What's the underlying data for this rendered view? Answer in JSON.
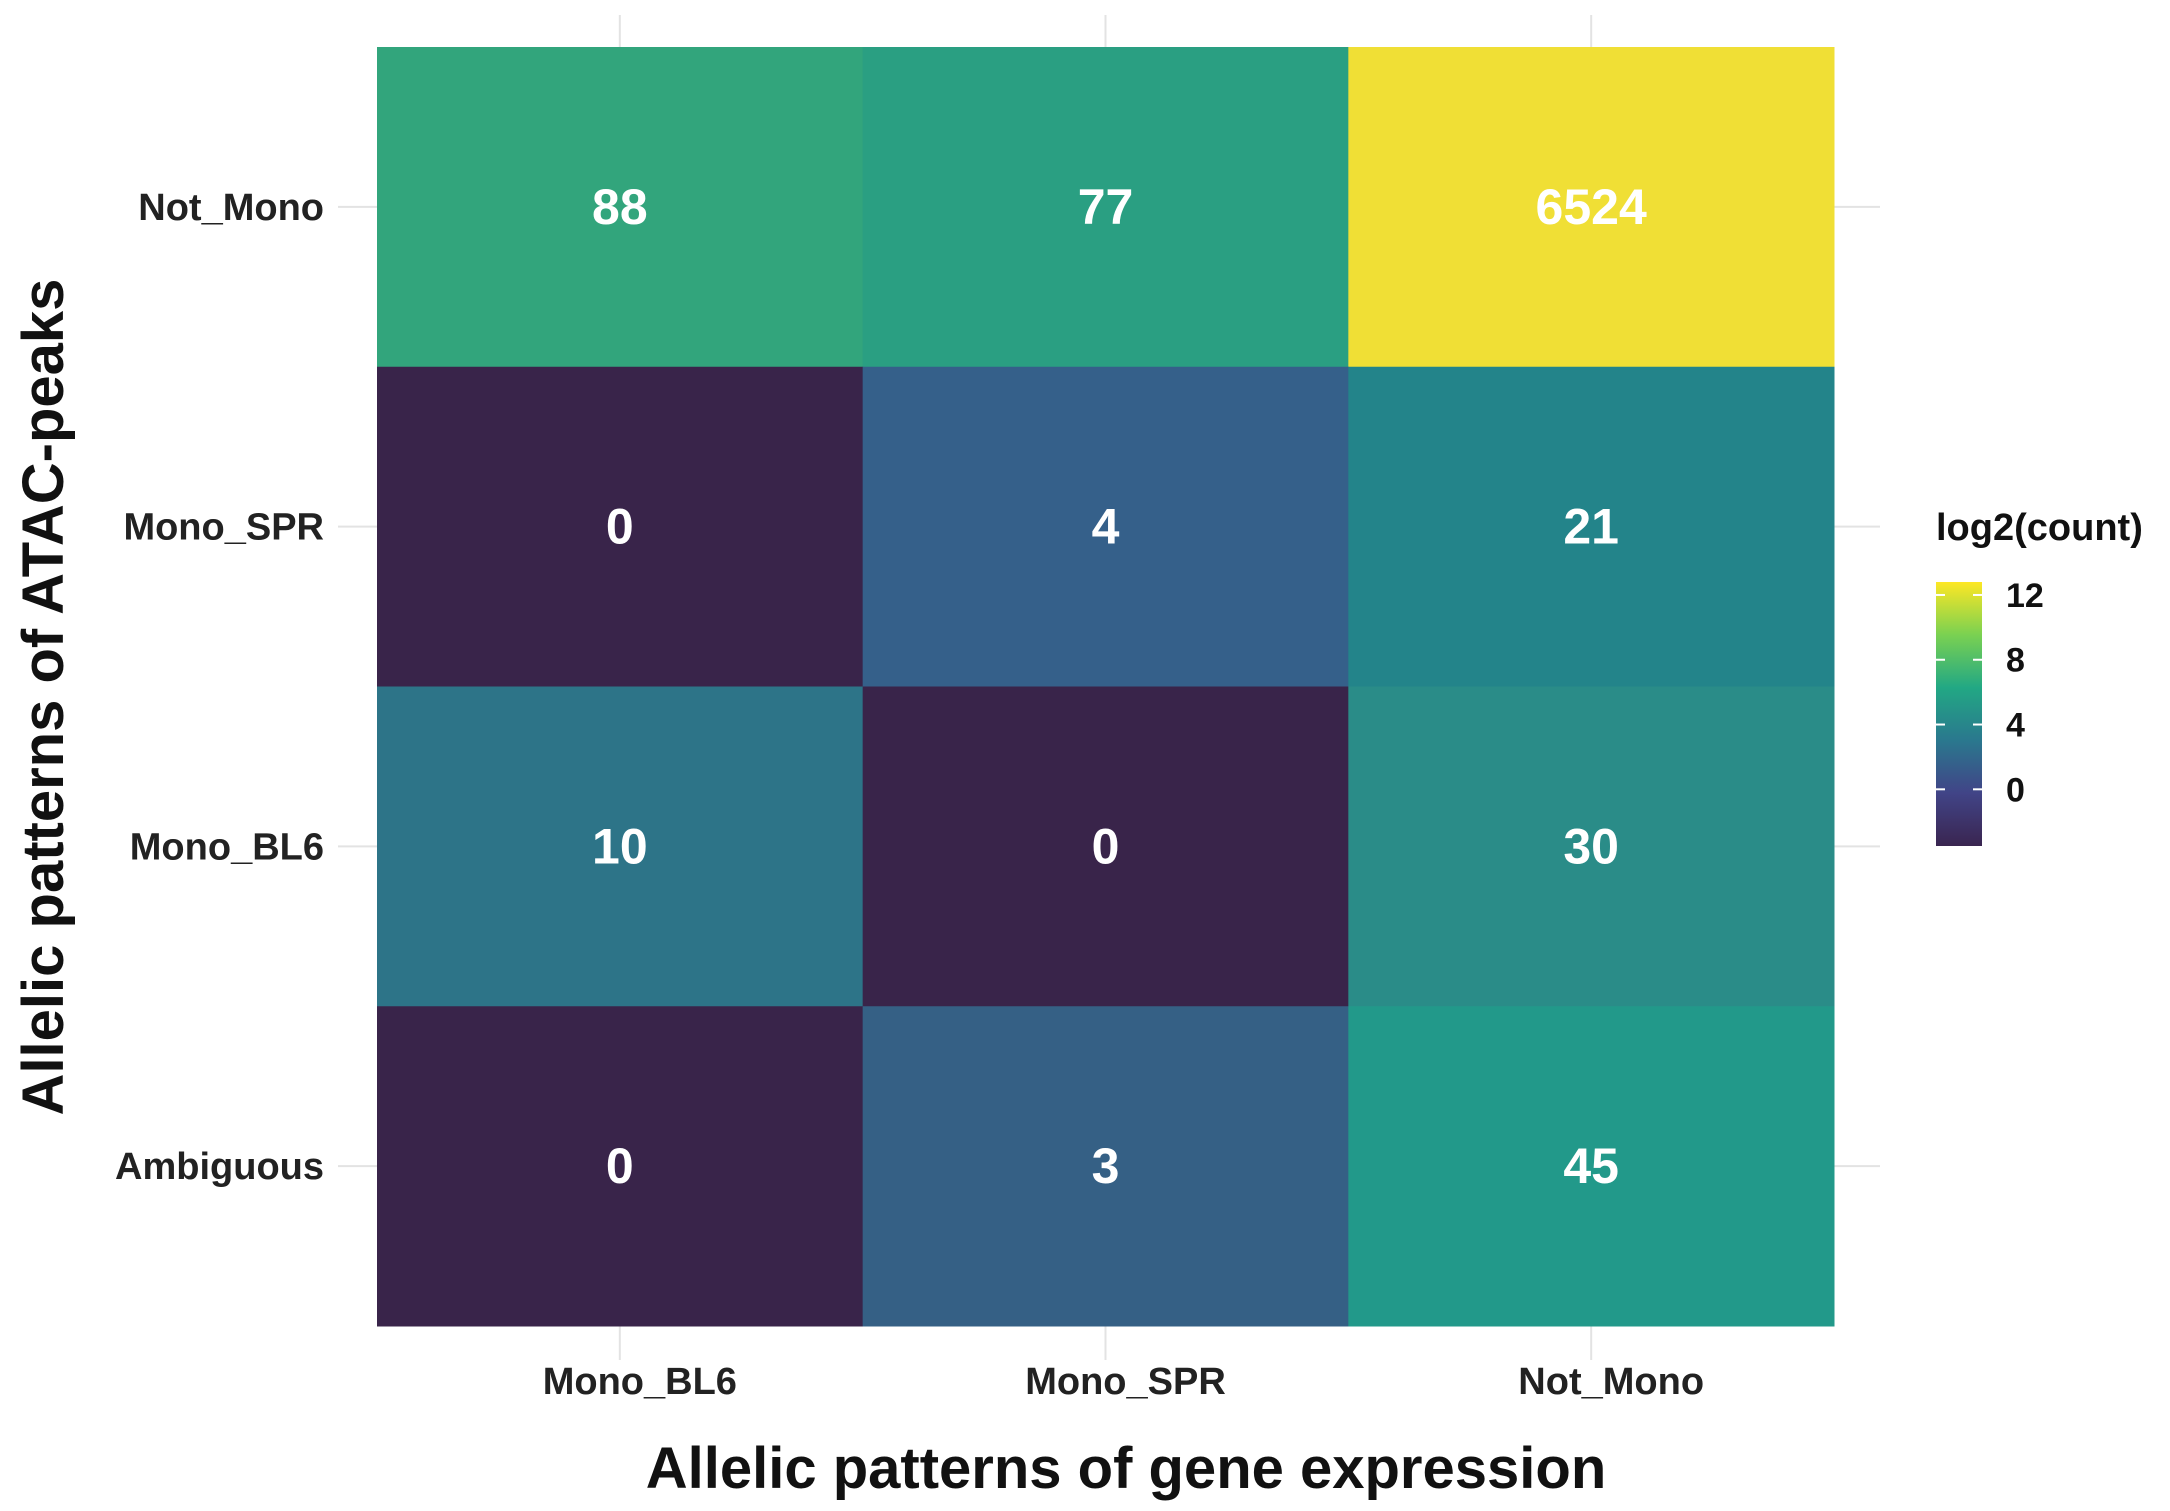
{
  "chart_data": {
    "type": "heatmap",
    "xlabel": "Allelic patterns of gene expression",
    "ylabel": "Allelic patterns of ATAC-peaks",
    "x_categories": [
      "Mono_BL6",
      "Mono_SPR",
      "Not_Mono"
    ],
    "y_categories": [
      "Not_Mono",
      "Mono_SPR",
      "Mono_BL6",
      "Ambiguous"
    ],
    "counts": [
      [
        88,
        77,
        6524
      ],
      [
        0,
        4,
        21
      ],
      [
        10,
        0,
        30
      ],
      [
        0,
        3,
        45
      ]
    ],
    "colors": [
      [
        "#32a57c",
        "#2a9f82",
        "#f0df35"
      ],
      [
        "#39244a",
        "#35608a",
        "#23848a"
      ],
      [
        "#2d7488",
        "#39244a",
        "#2a8c88"
      ],
      [
        "#39244a",
        "#356085",
        "#22998a"
      ]
    ],
    "legend": {
      "title": "log2(count)",
      "ticks": [
        12,
        8,
        4,
        0
      ],
      "range": [
        -3.5,
        12.8
      ],
      "colors": [
        "#3a2550",
        "#414487",
        "#2a788e",
        "#22a884",
        "#7ad151",
        "#fde725"
      ]
    },
    "grid": true
  }
}
